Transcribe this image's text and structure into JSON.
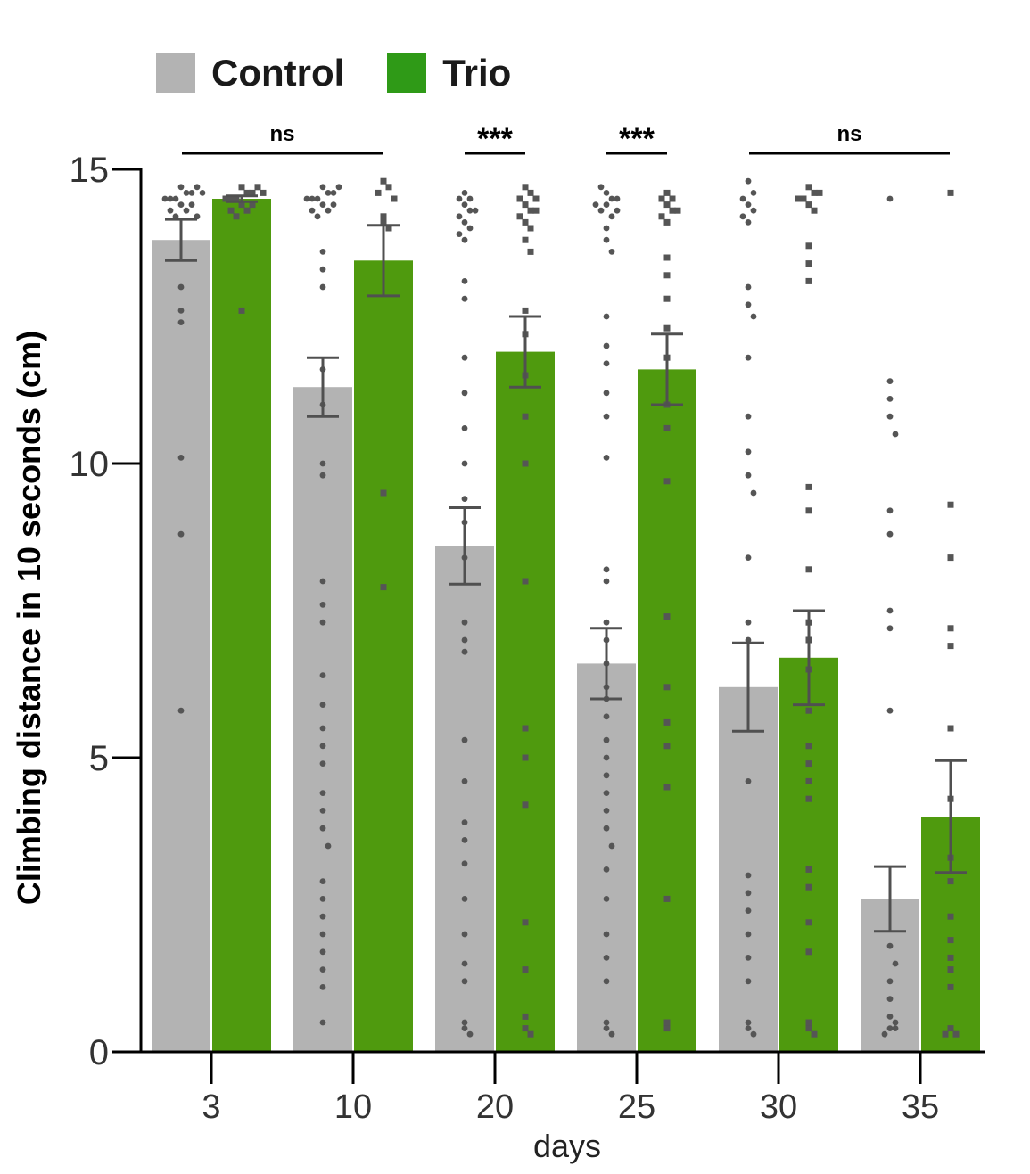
{
  "chart_data": {
    "type": "bar",
    "xlabel": "days",
    "ylabel": "Climbing distance in 10 seconds (cm)",
    "ylim": [
      0,
      15
    ],
    "yticks": [
      "0",
      "5",
      "10",
      "15"
    ],
    "categories": [
      "3",
      "10",
      "20",
      "25",
      "30",
      "35"
    ],
    "series": [
      {
        "name": "Control",
        "color": "#b3b3b3",
        "values": [
          13.8,
          11.3,
          8.6,
          6.6,
          6.2,
          2.6
        ],
        "error": [
          0.35,
          0.5,
          0.65,
          0.6,
          0.75,
          0.55
        ],
        "points": [
          [
            14.7,
            14.6,
            14.5,
            14.4,
            14.3,
            14.2,
            14.6,
            14.5,
            14.4,
            14.7,
            14.3,
            14.5,
            14.6,
            14.2,
            13.0,
            12.6,
            12.4,
            10.1,
            8.8,
            5.8
          ],
          [
            14.7,
            14.6,
            14.5,
            14.4,
            14.3,
            14.2,
            14.6,
            14.5,
            14.7,
            14.4,
            14.3,
            14.5,
            13.6,
            13.3,
            13.0,
            11.6,
            11.0,
            10.0,
            9.8,
            8.0,
            7.6,
            7.3,
            6.4,
            5.9,
            5.5,
            5.2,
            4.9,
            4.4,
            4.1,
            3.8,
            3.5,
            2.9,
            2.6,
            2.3,
            2.0,
            1.7,
            1.4,
            1.1,
            0.5
          ],
          [
            14.6,
            14.5,
            14.4,
            14.3,
            14.2,
            14.1,
            14.0,
            13.9,
            13.8,
            14.5,
            14.3,
            13.1,
            12.8,
            11.8,
            11.2,
            10.6,
            10.0,
            9.4,
            9.0,
            8.4,
            7.3,
            7.0,
            6.8,
            5.3,
            4.6,
            3.9,
            3.6,
            3.2,
            2.6,
            2.0,
            1.5,
            1.2,
            0.5,
            0.4,
            0.3
          ],
          [
            14.6,
            14.4,
            14.2,
            14.0,
            13.8,
            13.6,
            14.5,
            14.3,
            14.7,
            14.5,
            14.3,
            14.4,
            12.5,
            12.0,
            11.7,
            11.2,
            10.8,
            10.1,
            8.2,
            8.0,
            7.3,
            7.0,
            6.6,
            6.2,
            6.0,
            5.7,
            5.3,
            5.0,
            4.7,
            4.4,
            4.1,
            3.8,
            3.5,
            3.1,
            2.6,
            2.0,
            1.6,
            1.2,
            0.5,
            0.4,
            0.3
          ],
          [
            14.8,
            14.6,
            14.4,
            14.3,
            14.2,
            14.5,
            14.1,
            13.0,
            12.7,
            12.5,
            11.8,
            10.8,
            10.2,
            9.8,
            9.5,
            8.4,
            7.3,
            7.0,
            4.6,
            3.0,
            2.7,
            2.4,
            2.0,
            1.6,
            1.2,
            0.5,
            0.4,
            0.3
          ],
          [
            14.5,
            11.4,
            11.1,
            10.8,
            10.5,
            9.2,
            8.8,
            7.5,
            7.2,
            5.8,
            1.8,
            1.5,
            1.2,
            0.9,
            0.6,
            0.5,
            0.4,
            0.4,
            0.3
          ]
        ]
      },
      {
        "name": "Trio",
        "color": "#4f9a0e",
        "values": [
          14.5,
          13.45,
          11.9,
          11.6,
          6.7,
          4.0
        ],
        "error": [
          0.05,
          0.6,
          0.6,
          0.6,
          0.8,
          0.95
        ],
        "points": [
          [
            14.7,
            14.6,
            14.5,
            14.4,
            14.3,
            14.2,
            14.6,
            14.5,
            14.4,
            14.7,
            14.5,
            14.3,
            14.6,
            12.6
          ],
          [
            14.8,
            14.7,
            14.6,
            14.5,
            14.2,
            14.1,
            14.0,
            9.5,
            7.9
          ],
          [
            14.7,
            14.6,
            14.5,
            14.4,
            14.3,
            14.2,
            14.1,
            14.0,
            13.8,
            13.6,
            14.5,
            14.3,
            12.6,
            12.2,
            11.5,
            10.8,
            10.0,
            8.0,
            5.5,
            5.0,
            4.2,
            2.2,
            1.4,
            0.6,
            0.4,
            0.3
          ],
          [
            14.6,
            14.5,
            14.4,
            14.3,
            14.2,
            14.1,
            14.5,
            14.3,
            13.5,
            13.2,
            12.8,
            12.3,
            11.8,
            11.0,
            10.6,
            9.7,
            7.4,
            6.2,
            5.6,
            5.2,
            4.5,
            2.6,
            0.5,
            0.4
          ],
          [
            14.7,
            14.6,
            14.5,
            14.4,
            14.3,
            14.6,
            14.5,
            13.7,
            13.4,
            13.1,
            9.6,
            9.2,
            8.2,
            7.3,
            7.0,
            6.5,
            5.8,
            5.2,
            4.9,
            4.6,
            4.3,
            3.1,
            2.8,
            2.2,
            1.7,
            0.5,
            0.4,
            0.3
          ],
          [
            14.6,
            9.3,
            8.4,
            7.2,
            6.9,
            5.5,
            4.3,
            3.3,
            2.9,
            2.3,
            1.9,
            1.6,
            1.4,
            1.1,
            0.4,
            0.3,
            0.3
          ]
        ]
      }
    ],
    "significance": [
      {
        "label": "ns",
        "from": "3",
        "to": "10"
      },
      {
        "label": "***",
        "from": "20",
        "to": "20"
      },
      {
        "label": "***",
        "from": "25",
        "to": "25"
      },
      {
        "label": "ns",
        "from": "30",
        "to": "35"
      }
    ],
    "legend_position": "top-left"
  }
}
